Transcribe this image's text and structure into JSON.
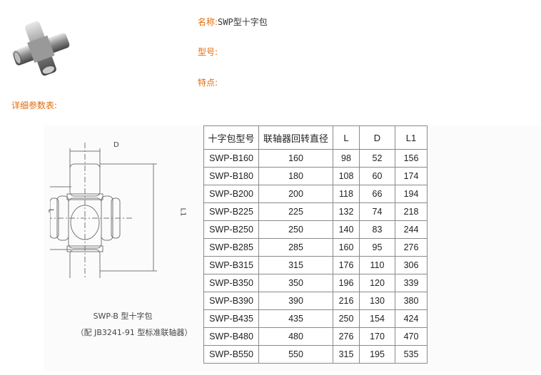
{
  "product": {
    "name_label": "名称:",
    "name_value": "SWP型十字包",
    "model_label": "型号:",
    "model_value": "",
    "feature_label": "特点:",
    "feature_value": "",
    "params_label": "详细参数表:"
  },
  "colors": {
    "label": "#e36c0a",
    "text": "#333333"
  },
  "diagram": {
    "dim_d": "D",
    "dim_l": "L",
    "dim_l1": "L1",
    "caption_line1": "SWP-B 型十字包",
    "caption_line2": "（配 JB3241-91 型标准联轴器）"
  },
  "table": {
    "headers": [
      "十字包型号",
      "联轴器回转直径",
      "L",
      "D",
      "L1"
    ],
    "rows": [
      [
        "SWP-B160",
        "160",
        "98",
        "52",
        "156"
      ],
      [
        "SWP-B180",
        "180",
        "108",
        "60",
        "174"
      ],
      [
        "SWP-B200",
        "200",
        "118",
        "66",
        "194"
      ],
      [
        "SWP-B225",
        "225",
        "132",
        "74",
        "218"
      ],
      [
        "SWP-B250",
        "250",
        "140",
        "83",
        "244"
      ],
      [
        "SWP-B285",
        "285",
        "160",
        "95",
        "276"
      ],
      [
        "SWP-B315",
        "315",
        "176",
        "110",
        "306"
      ],
      [
        "SWP-B350",
        "350",
        "196",
        "120",
        "339"
      ],
      [
        "SWP-B390",
        "390",
        "216",
        "130",
        "380"
      ],
      [
        "SWP-B435",
        "435",
        "250",
        "154",
        "424"
      ],
      [
        "SWP-B480",
        "480",
        "276",
        "170",
        "470"
      ],
      [
        "SWP-B550",
        "550",
        "315",
        "195",
        "535"
      ]
    ]
  }
}
